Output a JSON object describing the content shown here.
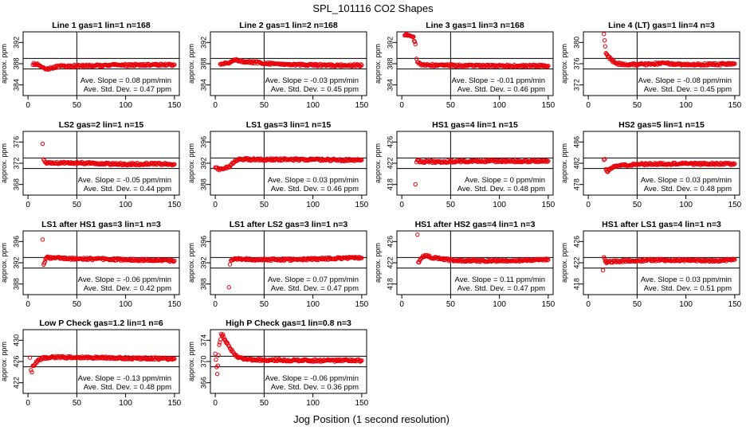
{
  "figure": {
    "title": "SPL_101116  CO2 Shapes",
    "xlabel": "Jog Position (1 second resolution)",
    "ylabel": "approx. ppm",
    "slope_prefix": "Ave. Slope = ",
    "slope_unit": " ppm/min",
    "std_prefix": "Ave. Std. Dev. = ",
    "std_unit": " ppm"
  },
  "colors": {
    "points": "#e8000b",
    "lines": "#000000",
    "axes": "#000000"
  },
  "chart_data": [
    {
      "type": "scatter",
      "title": "Line 1 gas=1 lin=1 n=168",
      "xlim": [
        -5,
        155
      ],
      "ylim": [
        382,
        394
      ],
      "xticks": [
        0,
        50,
        100,
        150
      ],
      "yticks": [
        384,
        388,
        392
      ],
      "hlines": [
        387,
        389
      ],
      "vline": 50,
      "slope": "0.08",
      "std": "0.47",
      "points": [
        [
          5,
          388.0
        ],
        [
          12,
          387.8
        ],
        [
          18,
          386.9
        ],
        [
          30,
          387.5
        ],
        [
          60,
          387.6
        ],
        [
          90,
          387.7
        ],
        [
          120,
          387.8
        ],
        [
          150,
          387.8
        ]
      ]
    },
    {
      "type": "scatter",
      "title": "Line 2 gas=1 lin=2 n=168",
      "xlim": [
        -5,
        155
      ],
      "ylim": [
        382,
        394
      ],
      "xticks": [
        0,
        50,
        100,
        150
      ],
      "yticks": [
        384,
        388,
        392
      ],
      "hlines": [
        387,
        389
      ],
      "vline": 50,
      "slope": "-0.03",
      "std": "0.45",
      "points": [
        [
          5,
          388.0
        ],
        [
          14,
          388.1
        ],
        [
          20,
          388.8
        ],
        [
          30,
          388.4
        ],
        [
          60,
          388.0
        ],
        [
          90,
          387.8
        ],
        [
          120,
          387.7
        ],
        [
          150,
          387.7
        ]
      ]
    },
    {
      "type": "scatter",
      "title": "Line 3 gas=1 lin=3 n=168",
      "xlim": [
        -5,
        155
      ],
      "ylim": [
        382,
        394
      ],
      "xticks": [
        0,
        50,
        100,
        150
      ],
      "yticks": [
        384,
        388,
        392
      ],
      "hlines": [
        387,
        389
      ],
      "vline": 50,
      "slope": "-0.01",
      "std": "0.46",
      "points": [
        [
          3,
          393.2
        ],
        [
          5,
          393.5
        ],
        [
          12,
          393.0
        ],
        [
          14,
          391.5
        ],
        [
          15,
          389.0
        ],
        [
          16,
          388.2
        ],
        [
          20,
          387.8
        ],
        [
          40,
          387.7
        ],
        [
          80,
          387.6
        ],
        [
          120,
          387.6
        ],
        [
          150,
          387.6
        ]
      ]
    },
    {
      "type": "scatter",
      "title": "Line 4 (LT) gas=1 lin=4 n=3",
      "xlim": [
        -5,
        155
      ],
      "ylim": [
        370,
        382
      ],
      "xticks": [
        0,
        50,
        100,
        150
      ],
      "yticks": [
        372,
        376,
        380
      ],
      "hlines": [
        375,
        377
      ],
      "vline": 50,
      "slope": "-0.08",
      "std": "0.45",
      "points": [
        [
          16,
          381.5
        ],
        [
          18,
          378.0
        ],
        [
          20,
          377.5
        ],
        [
          22,
          377.0
        ],
        [
          25,
          376.5
        ],
        [
          30,
          376.0
        ],
        [
          40,
          375.8
        ],
        [
          60,
          375.9
        ],
        [
          80,
          376.1
        ],
        [
          100,
          375.8
        ],
        [
          120,
          375.9
        ],
        [
          140,
          375.9
        ],
        [
          150,
          376.0
        ]
      ]
    },
    {
      "type": "scatter",
      "title": "LS2 gas=2 lin=1 n=15",
      "xlim": [
        -5,
        155
      ],
      "ylim": [
        366,
        378
      ],
      "xticks": [
        0,
        50,
        100,
        150
      ],
      "yticks": [
        368,
        372,
        376
      ],
      "hlines": [
        371,
        373
      ],
      "vline": 50,
      "slope": "-0.05",
      "std": "0.44",
      "points": [
        [
          15,
          375.5
        ],
        [
          16,
          372.6
        ],
        [
          20,
          372.0
        ],
        [
          40,
          372.1
        ],
        [
          70,
          372.0
        ],
        [
          100,
          371.8
        ],
        [
          130,
          371.9
        ],
        [
          150,
          371.8
        ]
      ]
    },
    {
      "type": "scatter",
      "title": "LS1 gas=3 lin=1 n=15",
      "xlim": [
        -5,
        155
      ],
      "ylim": [
        386,
        398
      ],
      "xticks": [
        0,
        50,
        100,
        150
      ],
      "yticks": [
        388,
        392,
        396
      ],
      "hlines": [
        391,
        393
      ],
      "vline": 50,
      "slope": "0.03",
      "std": "0.46",
      "points": [
        [
          0,
          391.2
        ],
        [
          5,
          390.8
        ],
        [
          10,
          391.0
        ],
        [
          15,
          391.5
        ],
        [
          20,
          392.3
        ],
        [
          25,
          392.8
        ],
        [
          40,
          392.7
        ],
        [
          70,
          392.7
        ],
        [
          100,
          392.7
        ],
        [
          130,
          392.6
        ],
        [
          150,
          392.6
        ]
      ]
    },
    {
      "type": "scatter",
      "title": "HS1 gas=4 lin=1 n=15",
      "xlim": [
        -5,
        155
      ],
      "ylim": [
        416,
        428
      ],
      "xticks": [
        0,
        50,
        100,
        150
      ],
      "yticks": [
        418,
        422,
        426
      ],
      "hlines": [
        421,
        423
      ],
      "vline": 50,
      "slope": "0",
      "std": "0.48",
      "points": [
        [
          14,
          418.0
        ],
        [
          15,
          422.0
        ],
        [
          16,
          422.5
        ],
        [
          20,
          422.3
        ],
        [
          40,
          422.3
        ],
        [
          70,
          422.4
        ],
        [
          100,
          422.4
        ],
        [
          130,
          422.4
        ],
        [
          150,
          422.4
        ]
      ]
    },
    {
      "type": "scatter",
      "title": "HS2 gas=5 lin=1 n=15",
      "xlim": [
        -5,
        155
      ],
      "ylim": [
        476,
        488
      ],
      "xticks": [
        0,
        50,
        100,
        150
      ],
      "yticks": [
        478,
        482,
        486
      ],
      "hlines": [
        481,
        483
      ],
      "vline": 50,
      "slope": "0.03",
      "std": "0.48",
      "points": [
        [
          16,
          482.7
        ],
        [
          17,
          482.6
        ],
        [
          18,
          480.8
        ],
        [
          20,
          480.5
        ],
        [
          22,
          481.0
        ],
        [
          30,
          481.6
        ],
        [
          50,
          481.8
        ],
        [
          80,
          481.9
        ],
        [
          110,
          481.9
        ],
        [
          150,
          481.9
        ]
      ]
    },
    {
      "type": "scatter",
      "title": "LS1 after HS1 gas=3 lin=1 n=3",
      "xlim": [
        -5,
        155
      ],
      "ylim": [
        386,
        398
      ],
      "xticks": [
        0,
        50,
        100,
        150
      ],
      "yticks": [
        388,
        392,
        396
      ],
      "hlines": [
        391,
        393
      ],
      "vline": 50,
      "slope": "-0.06",
      "std": "0.42",
      "points": [
        [
          15,
          396.5
        ],
        [
          16,
          391.5
        ],
        [
          18,
          392.6
        ],
        [
          20,
          393.0
        ],
        [
          40,
          392.8
        ],
        [
          70,
          392.7
        ],
        [
          100,
          392.6
        ],
        [
          130,
          392.5
        ],
        [
          150,
          392.4
        ]
      ]
    },
    {
      "type": "scatter",
      "title": "LS1 after LS2 gas=3 lin=1 n=3",
      "xlim": [
        -5,
        155
      ],
      "ylim": [
        386,
        398
      ],
      "xticks": [
        0,
        50,
        100,
        150
      ],
      "yticks": [
        388,
        392,
        396
      ],
      "hlines": [
        391,
        393
      ],
      "vline": 50,
      "slope": "0.07",
      "std": "0.47",
      "points": [
        [
          14,
          387.5
        ],
        [
          15,
          391.5
        ],
        [
          16,
          392.3
        ],
        [
          20,
          392.8
        ],
        [
          40,
          392.6
        ],
        [
          70,
          392.6
        ],
        [
          100,
          392.7
        ],
        [
          130,
          392.9
        ],
        [
          150,
          392.9
        ]
      ]
    },
    {
      "type": "scatter",
      "title": "HS1 after HS2 gas=4 lin=1 n=3",
      "xlim": [
        -5,
        155
      ],
      "ylim": [
        416,
        428
      ],
      "xticks": [
        0,
        50,
        100,
        150
      ],
      "yticks": [
        418,
        422,
        426
      ],
      "hlines": [
        421,
        423
      ],
      "vline": 50,
      "slope": "0.11",
      "std": "0.47",
      "points": [
        [
          16,
          427.5
        ],
        [
          17,
          422.0
        ],
        [
          20,
          423.0
        ],
        [
          25,
          423.5
        ],
        [
          30,
          423.0
        ],
        [
          50,
          422.5
        ],
        [
          80,
          422.4
        ],
        [
          110,
          422.4
        ],
        [
          150,
          422.6
        ]
      ]
    },
    {
      "type": "scatter",
      "title": "HS1 after LS1 gas=4 lin=1 n=3",
      "xlim": [
        -5,
        155
      ],
      "ylim": [
        416,
        428
      ],
      "xticks": [
        0,
        50,
        100,
        150
      ],
      "yticks": [
        418,
        422,
        426
      ],
      "hlines": [
        421,
        423
      ],
      "vline": 50,
      "slope": "0.03",
      "std": "0.51",
      "points": [
        [
          15,
          420.5
        ],
        [
          16,
          423.0
        ],
        [
          18,
          422.0
        ],
        [
          20,
          422.2
        ],
        [
          40,
          422.4
        ],
        [
          70,
          422.5
        ],
        [
          100,
          422.5
        ],
        [
          130,
          422.4
        ],
        [
          150,
          422.6
        ]
      ]
    },
    {
      "type": "scatter",
      "title": "Low P Check gas=1.2 lin=1 n=6",
      "xlim": [
        -5,
        155
      ],
      "ylim": [
        420,
        432
      ],
      "xticks": [
        0,
        50,
        100,
        150
      ],
      "yticks": [
        422,
        426,
        430
      ],
      "hlines": [
        425,
        427
      ],
      "vline": 50,
      "slope": "-0.13",
      "std": "0.48",
      "points": [
        [
          2,
          426.8
        ],
        [
          3,
          424.5
        ],
        [
          4,
          424.0
        ],
        [
          5,
          425.0
        ],
        [
          7,
          425.5
        ],
        [
          10,
          426.2
        ],
        [
          15,
          426.6
        ],
        [
          25,
          426.8
        ],
        [
          50,
          426.8
        ],
        [
          80,
          426.7
        ],
        [
          110,
          426.6
        ],
        [
          150,
          426.5
        ]
      ]
    },
    {
      "type": "scatter",
      "title": "High P Check gas=1 lin=0.8 n=3",
      "xlim": [
        -5,
        155
      ],
      "ylim": [
        364,
        376
      ],
      "xticks": [
        0,
        50,
        100,
        150
      ],
      "yticks": [
        366,
        370,
        374
      ],
      "hlines": [
        369,
        371
      ],
      "vline": 50,
      "slope": "-0.06",
      "std": "0.36",
      "points": [
        [
          0,
          371.5
        ],
        [
          2,
          367.5
        ],
        [
          4,
          373.0
        ],
        [
          6,
          375.0
        ],
        [
          8,
          375.0
        ],
        [
          10,
          374.0
        ],
        [
          12,
          373.5
        ],
        [
          15,
          372.5
        ],
        [
          18,
          371.8
        ],
        [
          22,
          371.0
        ],
        [
          28,
          370.6
        ],
        [
          40,
          370.3
        ],
        [
          60,
          370.3
        ],
        [
          90,
          370.2
        ],
        [
          120,
          370.2
        ],
        [
          150,
          370.2
        ]
      ]
    }
  ]
}
